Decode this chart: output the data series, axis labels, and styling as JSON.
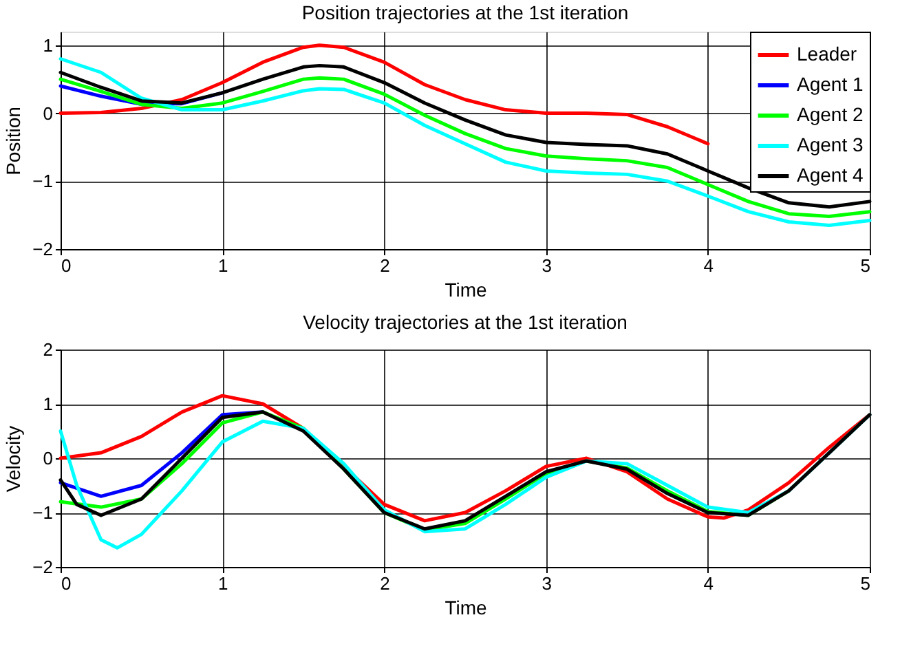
{
  "chart_data": [
    {
      "type": "line",
      "title": "Position trajectories at the 1st iteration",
      "xlabel": "Time",
      "ylabel": "Position",
      "xlim": [
        0,
        5
      ],
      "xticks": [
        0,
        1,
        2,
        3,
        4,
        5
      ],
      "ylim": [
        -2,
        1.2
      ],
      "yticks": [
        -2,
        -1,
        0,
        1
      ],
      "grid": true,
      "legend": "top right",
      "line_style": "solid",
      "marker": "none",
      "series": [
        {
          "name": "Leader",
          "color": "#ff0000",
          "x": [
            0,
            0.25,
            0.5,
            0.75,
            1,
            1.25,
            1.5,
            1.6,
            1.75,
            2,
            2.25,
            2.5,
            2.75,
            3,
            3.25,
            3.5,
            3.75,
            4
          ],
          "values": [
            0,
            0.01,
            0.07,
            0.2,
            0.45,
            0.75,
            0.97,
            1.0,
            0.97,
            0.75,
            0.42,
            0.2,
            0.05,
            0,
            0,
            -0.02,
            -0.2,
            -0.45
          ]
        },
        {
          "name": "Agent 1",
          "color": "#0000ff",
          "x": [
            0,
            0.25,
            0.5,
            0.75,
            1
          ],
          "values": [
            0.4,
            0.25,
            0.13,
            0.14,
            0.3
          ]
        },
        {
          "name": "Agent 2",
          "color": "#00ff00",
          "x": [
            0,
            0.25,
            0.5,
            0.75,
            1,
            1.25,
            1.5,
            1.6,
            1.75,
            2,
            2.25,
            2.5,
            2.75,
            3,
            3.25,
            3.5,
            3.75,
            4,
            4.25,
            4.5,
            4.75,
            5
          ],
          "values": [
            0.5,
            0.32,
            0.13,
            0.07,
            0.15,
            0.32,
            0.5,
            0.52,
            0.5,
            0.28,
            -0.03,
            -0.3,
            -0.52,
            -0.63,
            -0.67,
            -0.7,
            -0.8,
            -1.05,
            -1.3,
            -1.48,
            -1.52,
            -1.45
          ]
        },
        {
          "name": "Agent 3",
          "color": "#00ffff",
          "x": [
            0,
            0.25,
            0.5,
            0.75,
            1,
            1.25,
            1.5,
            1.6,
            1.75,
            2,
            2.25,
            2.5,
            2.75,
            3,
            3.25,
            3.5,
            3.75,
            4,
            4.25,
            4.5,
            4.75,
            5
          ],
          "values": [
            0.8,
            0.6,
            0.22,
            0.05,
            0.05,
            0.18,
            0.33,
            0.36,
            0.35,
            0.15,
            -0.18,
            -0.45,
            -0.72,
            -0.85,
            -0.88,
            -0.9,
            -1.0,
            -1.22,
            -1.45,
            -1.6,
            -1.65,
            -1.58
          ]
        },
        {
          "name": "Agent 4",
          "color": "#000000",
          "x": [
            0,
            0.25,
            0.5,
            0.75,
            1,
            1.25,
            1.5,
            1.6,
            1.75,
            2,
            2.25,
            2.5,
            2.75,
            3,
            3.25,
            3.5,
            3.75,
            4,
            4.25,
            4.5,
            4.75,
            5
          ],
          "values": [
            0.6,
            0.38,
            0.18,
            0.15,
            0.3,
            0.5,
            0.68,
            0.7,
            0.68,
            0.45,
            0.15,
            -0.1,
            -0.32,
            -0.43,
            -0.46,
            -0.48,
            -0.6,
            -0.85,
            -1.1,
            -1.32,
            -1.38,
            -1.3
          ]
        }
      ]
    },
    {
      "type": "line",
      "title": "Velocity trajectories at the 1st iteration",
      "xlabel": "Time",
      "ylabel": "Velocity",
      "xlim": [
        0,
        5
      ],
      "xticks": [
        0,
        1,
        2,
        3,
        4,
        5
      ],
      "ylim": [
        -2,
        2
      ],
      "yticks": [
        -2,
        -1,
        0,
        1,
        2
      ],
      "grid": true,
      "legend": false,
      "line_style": "solid",
      "marker": "none",
      "series": [
        {
          "color": "#ff0000",
          "x": [
            0,
            0.25,
            0.5,
            0.75,
            1,
            1.25,
            1.5,
            1.75,
            2,
            2.25,
            2.5,
            2.75,
            3,
            3.25,
            3.5,
            3.75,
            4,
            4.1,
            4.25,
            4.5,
            4.75,
            5
          ],
          "values": [
            0,
            0.1,
            0.4,
            0.85,
            1.15,
            1.0,
            0.55,
            -0.15,
            -0.85,
            -1.15,
            -1.0,
            -0.6,
            -0.15,
            0,
            -0.25,
            -0.75,
            -1.08,
            -1.1,
            -0.95,
            -0.45,
            0.2,
            0.8
          ]
        },
        {
          "color": "#0000ff",
          "x": [
            0,
            0.25,
            0.5,
            0.75,
            1,
            1.25
          ],
          "values": [
            -0.45,
            -0.7,
            -0.5,
            0.1,
            0.8,
            0.85
          ]
        },
        {
          "color": "#00ff00",
          "x": [
            0,
            0.25,
            0.5,
            0.75,
            1,
            1.25,
            1.5,
            1.75,
            2,
            2.25,
            2.5,
            2.75,
            3,
            3.25,
            3.5,
            3.75,
            4,
            4.25,
            4.5
          ],
          "values": [
            -0.8,
            -0.9,
            -0.75,
            -0.1,
            0.65,
            0.85,
            0.55,
            -0.2,
            -1.0,
            -1.32,
            -1.2,
            -0.75,
            -0.28,
            -0.05,
            -0.18,
            -0.6,
            -0.98,
            -1.05,
            -0.6
          ]
        },
        {
          "color": "#00ffff",
          "x": [
            0,
            0.1,
            0.25,
            0.35,
            0.5,
            0.75,
            1,
            1.25,
            1.5,
            1.75,
            2,
            2.25,
            2.5,
            2.75,
            3,
            3.25,
            3.5,
            3.75,
            4,
            4.25,
            4.5,
            4.75,
            5
          ],
          "values": [
            0.5,
            -0.5,
            -1.5,
            -1.65,
            -1.4,
            -0.6,
            0.3,
            0.68,
            0.55,
            -0.1,
            -0.95,
            -1.35,
            -1.3,
            -0.85,
            -0.35,
            -0.05,
            -0.1,
            -0.5,
            -0.9,
            -1.0,
            -0.6,
            0.1,
            0.8
          ]
        },
        {
          "color": "#000000",
          "x": [
            0,
            0.1,
            0.25,
            0.5,
            0.75,
            1,
            1.25,
            1.5,
            1.75,
            2,
            2.25,
            2.5,
            2.75,
            3,
            3.25,
            3.5,
            3.75,
            4,
            4.25,
            4.5,
            4.75,
            5
          ],
          "values": [
            -0.4,
            -0.85,
            -1.05,
            -0.75,
            0.0,
            0.75,
            0.85,
            0.5,
            -0.2,
            -1.0,
            -1.3,
            -1.15,
            -0.7,
            -0.25,
            -0.05,
            -0.2,
            -0.65,
            -1.0,
            -1.05,
            -0.6,
            0.1,
            0.8
          ]
        }
      ]
    }
  ]
}
